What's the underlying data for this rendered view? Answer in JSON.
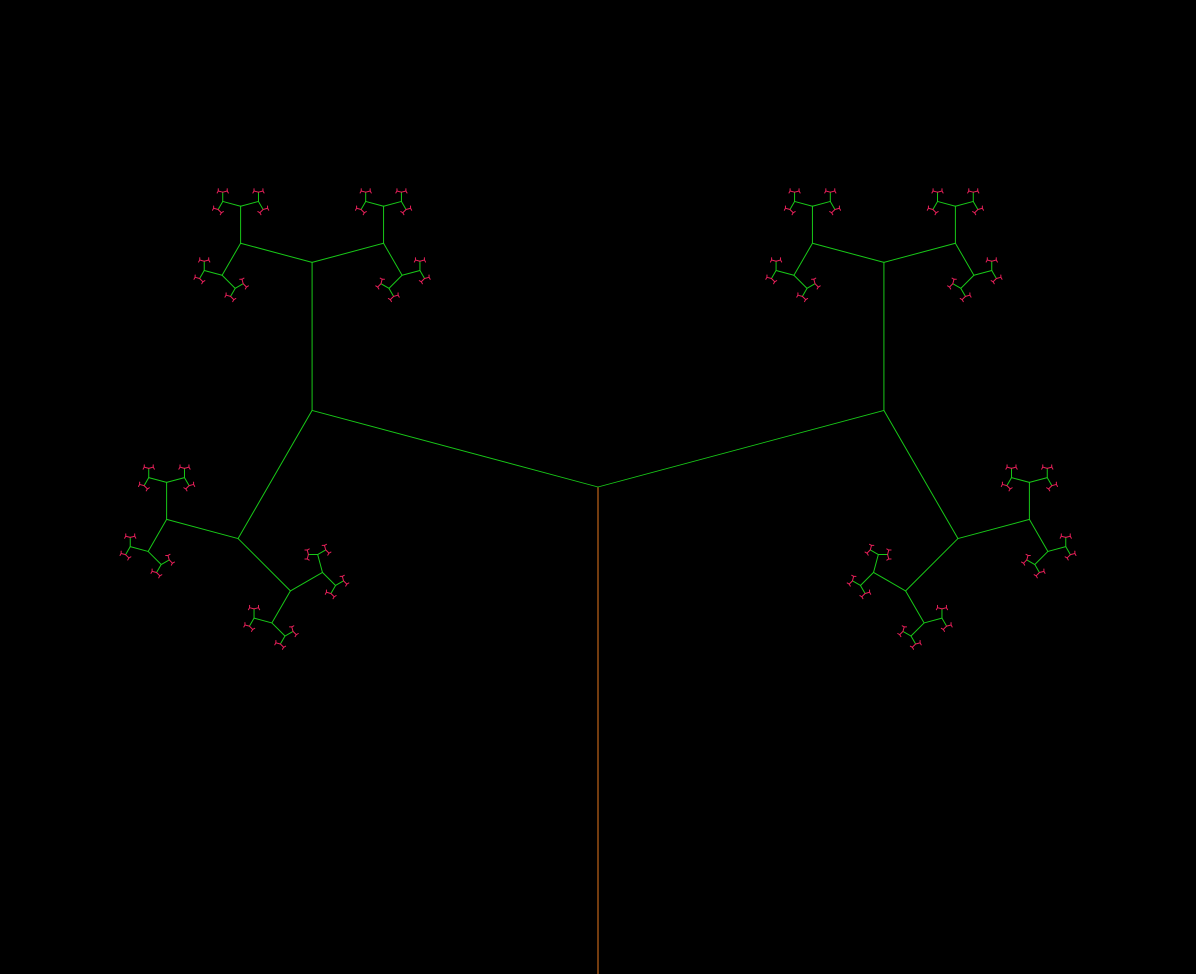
{
  "fractal": {
    "trunk_color": "#e8781e",
    "branch_color": "#18c818",
    "tip_color": "#e8205a",
    "background_color": "#000000"
  }
}
